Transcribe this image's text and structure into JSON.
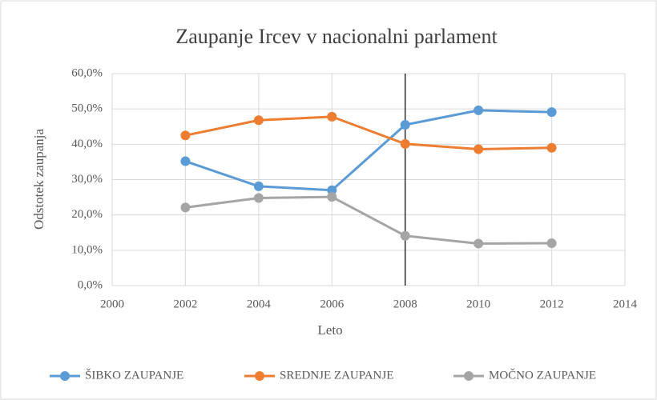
{
  "chart_data": {
    "type": "line",
    "title": "Zaupanje  Ircev v nacionalni  parlament",
    "x_label": "Leto",
    "y_label": "Odstotek zaupanja",
    "x": [
      2002,
      2004,
      2006,
      2008,
      2010,
      2012
    ],
    "series": [
      {
        "name": "ŠIBKO ZAUPANJE",
        "color": "#5b9bd5",
        "values": [
          35.2,
          28.1,
          27.0,
          45.5,
          49.6,
          49.1
        ]
      },
      {
        "name": "SREDNJE ZAUPANJE",
        "color": "#ed7d31",
        "values": [
          42.5,
          46.8,
          47.8,
          40.1,
          38.6,
          39.0
        ]
      },
      {
        "name": "MOČNO ZAUPANJE",
        "color": "#a5a5a5",
        "values": [
          22.1,
          24.8,
          25.1,
          14.1,
          11.9,
          12.0
        ]
      }
    ],
    "xlim": [
      2000,
      2014
    ],
    "xticks": [
      2000,
      2002,
      2004,
      2006,
      2008,
      2010,
      2012,
      2014
    ],
    "ylim": [
      0,
      60
    ],
    "yticks": [
      {
        "value": 0,
        "label": "0,0%"
      },
      {
        "value": 10,
        "label": "10,0%"
      },
      {
        "value": 20,
        "label": "20,0%"
      },
      {
        "value": 30,
        "label": "30,0%"
      },
      {
        "value": 40,
        "label": "40,0%"
      },
      {
        "value": 50,
        "label": "50,0%"
      },
      {
        "value": 60,
        "label": "60,0%"
      }
    ],
    "grid": true,
    "vline": 2008,
    "legend": "bottom"
  }
}
